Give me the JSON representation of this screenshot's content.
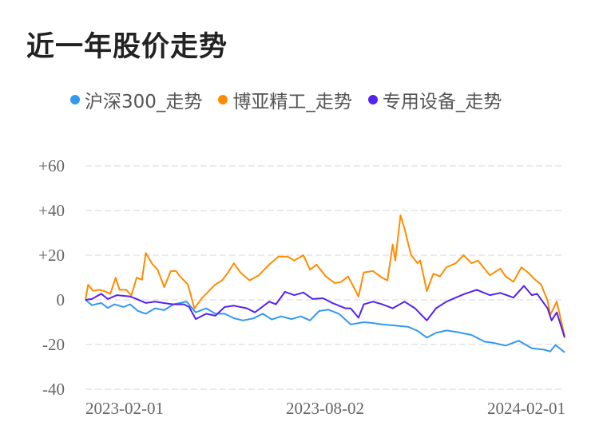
{
  "chart_data": {
    "type": "line",
    "title": "近一年股价走势",
    "xlim": [
      "2023-02-01",
      "2024-02-01"
    ],
    "ylim": [
      -40,
      60
    ],
    "y_ticks": [
      60,
      40,
      20,
      0,
      -20,
      -40
    ],
    "y_tick_labels": [
      "+60",
      "+40",
      "+20",
      "0",
      "-20",
      "-40"
    ],
    "x_tick_labels": [
      "2023-02-01",
      "2023-08-02",
      "2024-02-01"
    ],
    "grid": true,
    "legend_position": "top",
    "series": [
      {
        "name": "沪深300_走势",
        "color": "#3399ee",
        "points": [
          [
            "2023-02-01",
            0
          ],
          [
            "2023-02-06",
            -2.4
          ],
          [
            "2023-02-13",
            -1.4
          ],
          [
            "2023-02-18",
            -3.6
          ],
          [
            "2023-02-23",
            -2
          ],
          [
            "2023-03-02",
            -3.2
          ],
          [
            "2023-03-07",
            -2
          ],
          [
            "2023-03-13",
            -5
          ],
          [
            "2023-03-19",
            -6.2
          ],
          [
            "2023-03-26",
            -3.8
          ],
          [
            "2023-04-02",
            -4.6
          ],
          [
            "2023-04-09",
            -2
          ],
          [
            "2023-04-19",
            -0.8
          ],
          [
            "2023-04-26",
            -5.6
          ],
          [
            "2023-05-04",
            -3.8
          ],
          [
            "2023-05-11",
            -6.2
          ],
          [
            "2023-05-18",
            -6.2
          ],
          [
            "2023-05-25",
            -8.2
          ],
          [
            "2023-06-01",
            -9.2
          ],
          [
            "2023-06-09",
            -8.3
          ],
          [
            "2023-06-16",
            -6.2
          ],
          [
            "2023-06-23",
            -8.8
          ],
          [
            "2023-06-30",
            -7.4
          ],
          [
            "2023-07-08",
            -8.6
          ],
          [
            "2023-07-15",
            -7.4
          ],
          [
            "2023-07-22",
            -9.2
          ],
          [
            "2023-07-29",
            -5
          ],
          [
            "2023-08-05",
            -4.4
          ],
          [
            "2023-08-13",
            -6.2
          ],
          [
            "2023-08-22",
            -11
          ],
          [
            "2023-09-01",
            -10
          ],
          [
            "2023-09-08",
            -10.4
          ],
          [
            "2023-09-15",
            -11
          ],
          [
            "2023-09-25",
            -11.5
          ],
          [
            "2023-10-05",
            -12.1
          ],
          [
            "2023-10-12",
            -13.9
          ],
          [
            "2023-10-19",
            -16.9
          ],
          [
            "2023-10-26",
            -14.8
          ],
          [
            "2023-11-03",
            -13.7
          ],
          [
            "2023-11-12",
            -14.5
          ],
          [
            "2023-11-22",
            -15.7
          ],
          [
            "2023-12-02",
            -18.7
          ],
          [
            "2023-12-09",
            -19.3
          ],
          [
            "2023-12-18",
            -20.5
          ],
          [
            "2023-12-28",
            -18.3
          ],
          [
            "2024-01-07",
            -21.7
          ],
          [
            "2024-01-16",
            -22.3
          ],
          [
            "2024-01-21",
            -23.1
          ],
          [
            "2024-01-25",
            -20.2
          ],
          [
            "2024-02-01",
            -23.5
          ]
        ]
      },
      {
        "name": "博亚精工_走势",
        "color": "#ff8c00",
        "points": [
          [
            "2023-02-01",
            0
          ],
          [
            "2023-02-03",
            6.7
          ],
          [
            "2023-02-07",
            4
          ],
          [
            "2023-02-11",
            4.5
          ],
          [
            "2023-02-15",
            4
          ],
          [
            "2023-02-20",
            2.7
          ],
          [
            "2023-02-24",
            9.9
          ],
          [
            "2023-02-27",
            4.5
          ],
          [
            "2023-03-04",
            4.5
          ],
          [
            "2023-03-08",
            2
          ],
          [
            "2023-03-12",
            10
          ],
          [
            "2023-03-16",
            9
          ],
          [
            "2023-03-19",
            21
          ],
          [
            "2023-03-24",
            16
          ],
          [
            "2023-03-28",
            13.5
          ],
          [
            "2023-04-02",
            5.7
          ],
          [
            "2023-04-07",
            12.9
          ],
          [
            "2023-04-11",
            12.9
          ],
          [
            "2023-04-14",
            10.5
          ],
          [
            "2023-04-20",
            6.9
          ],
          [
            "2023-04-25",
            -3.8
          ],
          [
            "2023-05-01",
            1
          ],
          [
            "2023-05-06",
            3.9
          ],
          [
            "2023-05-11",
            6.9
          ],
          [
            "2023-05-16",
            8.7
          ],
          [
            "2023-05-20",
            11.7
          ],
          [
            "2023-05-25",
            16.4
          ],
          [
            "2023-05-30",
            12.3
          ],
          [
            "2023-06-06",
            8.7
          ],
          [
            "2023-06-13",
            11
          ],
          [
            "2023-06-21",
            15.8
          ],
          [
            "2023-06-28",
            19.4
          ],
          [
            "2023-07-05",
            19.4
          ],
          [
            "2023-07-10",
            17.6
          ],
          [
            "2023-07-17",
            20
          ],
          [
            "2023-07-22",
            13.5
          ],
          [
            "2023-07-27",
            15.8
          ],
          [
            "2023-08-03",
            10.5
          ],
          [
            "2023-08-10",
            7.5
          ],
          [
            "2023-08-15",
            8.1
          ],
          [
            "2023-08-20",
            10.5
          ],
          [
            "2023-08-28",
            1.5
          ],
          [
            "2023-09-01",
            12.3
          ],
          [
            "2023-09-08",
            12.9
          ],
          [
            "2023-09-15",
            9.9
          ],
          [
            "2023-09-19",
            8.7
          ],
          [
            "2023-09-23",
            24.8
          ],
          [
            "2023-09-25",
            17.6
          ],
          [
            "2023-09-29",
            37.9
          ],
          [
            "2023-10-02",
            31.9
          ],
          [
            "2023-10-07",
            20
          ],
          [
            "2023-10-12",
            16.4
          ],
          [
            "2023-10-14",
            17.6
          ],
          [
            "2023-10-19",
            3.9
          ],
          [
            "2023-10-24",
            11.7
          ],
          [
            "2023-10-29",
            10.5
          ],
          [
            "2023-11-03",
            14.6
          ],
          [
            "2023-11-10",
            16.4
          ],
          [
            "2023-11-16",
            20
          ],
          [
            "2023-11-22",
            16.4
          ],
          [
            "2023-11-27",
            17.6
          ],
          [
            "2023-12-06",
            11
          ],
          [
            "2023-12-14",
            14
          ],
          [
            "2023-12-18",
            10.5
          ],
          [
            "2023-12-24",
            8.1
          ],
          [
            "2023-12-30",
            14.6
          ],
          [
            "2024-01-04",
            12.3
          ],
          [
            "2024-01-09",
            9.3
          ],
          [
            "2024-01-14",
            6.9
          ],
          [
            "2024-01-19",
            -0.2
          ],
          [
            "2024-01-21",
            -6.8
          ],
          [
            "2024-01-26",
            -0.8
          ],
          [
            "2024-02-01",
            -16.3
          ]
        ]
      },
      {
        "name": "专用设备_走势",
        "color": "#5522ee",
        "points": [
          [
            "2023-02-01",
            0
          ],
          [
            "2023-02-06",
            0.4
          ],
          [
            "2023-02-13",
            2.7
          ],
          [
            "2023-02-18",
            0.4
          ],
          [
            "2023-02-25",
            2.1
          ],
          [
            "2023-03-07",
            1.5
          ],
          [
            "2023-03-12",
            0.4
          ],
          [
            "2023-03-19",
            -1.4
          ],
          [
            "2023-03-26",
            -0.8
          ],
          [
            "2023-04-05",
            -1.7
          ],
          [
            "2023-04-09",
            -2
          ],
          [
            "2023-04-17",
            -2
          ],
          [
            "2023-04-21",
            -3.2
          ],
          [
            "2023-04-26",
            -8.6
          ],
          [
            "2023-05-04",
            -6.2
          ],
          [
            "2023-05-11",
            -7.1
          ],
          [
            "2023-05-18",
            -3.2
          ],
          [
            "2023-05-25",
            -2.6
          ],
          [
            "2023-06-04",
            -3.8
          ],
          [
            "2023-06-10",
            -5.6
          ],
          [
            "2023-06-21",
            -0.8
          ],
          [
            "2023-06-26",
            -2
          ],
          [
            "2023-07-03",
            3.6
          ],
          [
            "2023-07-10",
            2.1
          ],
          [
            "2023-07-17",
            3.3
          ],
          [
            "2023-07-24",
            0.4
          ],
          [
            "2023-08-01",
            0.7
          ],
          [
            "2023-08-08",
            -1.4
          ],
          [
            "2023-08-18",
            -3.8
          ],
          [
            "2023-08-22",
            -3.8
          ],
          [
            "2023-08-28",
            -8
          ],
          [
            "2023-09-01",
            -2
          ],
          [
            "2023-09-08",
            -0.8
          ],
          [
            "2023-09-15",
            -2
          ],
          [
            "2023-09-23",
            -3.8
          ],
          [
            "2023-10-02",
            -0.8
          ],
          [
            "2023-10-10",
            -3.8
          ],
          [
            "2023-10-19",
            -9.2
          ],
          [
            "2023-10-26",
            -3.8
          ],
          [
            "2023-11-03",
            -0.8
          ],
          [
            "2023-11-10",
            1
          ],
          [
            "2023-11-17",
            2.7
          ],
          [
            "2023-11-26",
            4.5
          ],
          [
            "2023-12-06",
            2.1
          ],
          [
            "2023-12-14",
            3.1
          ],
          [
            "2023-12-24",
            1
          ],
          [
            "2024-01-01",
            6.3
          ],
          [
            "2024-01-07",
            2.1
          ],
          [
            "2024-01-11",
            2.7
          ],
          [
            "2024-01-19",
            -3.8
          ],
          [
            "2024-01-22",
            -9.2
          ],
          [
            "2024-01-26",
            -5.6
          ],
          [
            "2024-02-01",
            -16.9
          ]
        ]
      }
    ]
  }
}
